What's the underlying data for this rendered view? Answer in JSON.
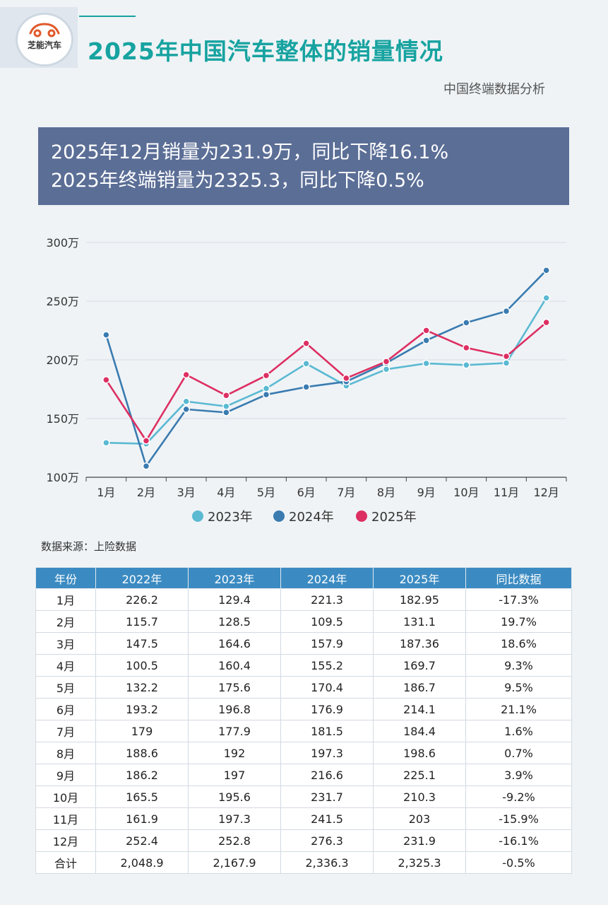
{
  "logo": {
    "text": "芝能汽车"
  },
  "title": "2025年中国汽车整体的销量情况",
  "subtitle": "中国终端数据分析",
  "banner": {
    "line1": "2025年12月销量为231.9万，同比下降16.1%",
    "line2": "2025年终端销量为2325.3，同比下降0.5%"
  },
  "source": "数据来源：上险数据",
  "watermark": "芝能汽车",
  "colors": {
    "2023": "#5bb9d2",
    "2024": "#3a7bb0",
    "2025": "#dd2f62",
    "title": "#17a3a0",
    "banner": "#5b6e96",
    "table_header": "#3b8bc2"
  },
  "chart_data": {
    "type": "line",
    "categories": [
      "1月",
      "2月",
      "3月",
      "4月",
      "5月",
      "6月",
      "7月",
      "8月",
      "9月",
      "10月",
      "11月",
      "12月"
    ],
    "yticks": [
      100,
      150,
      200,
      250,
      300
    ],
    "ytick_labels": [
      "100万",
      "150万",
      "200万",
      "250万",
      "300万"
    ],
    "ylim": [
      100,
      300
    ],
    "grid": true,
    "legend_position": "bottom",
    "series": [
      {
        "name": "2023年",
        "key": "2023",
        "values": [
          129.4,
          128.5,
          164.6,
          160.4,
          175.6,
          196.8,
          177.9,
          192,
          197,
          195.6,
          197.3,
          252.8
        ]
      },
      {
        "name": "2024年",
        "key": "2024",
        "values": [
          221.3,
          109.5,
          157.9,
          155.2,
          170.4,
          176.9,
          181.5,
          197.3,
          216.6,
          231.7,
          241.5,
          276.3
        ]
      },
      {
        "name": "2025年",
        "key": "2025",
        "values": [
          182.95,
          131.1,
          187.36,
          169.7,
          186.7,
          214.1,
          184.4,
          198.6,
          225.1,
          210.3,
          203,
          231.9
        ]
      }
    ]
  },
  "table": {
    "headers": [
      "年份",
      "2022年",
      "2023年",
      "2024年",
      "2025年",
      "同比数据"
    ],
    "rows": [
      [
        "1月",
        "226.2",
        "129.4",
        "221.3",
        "182.95",
        "-17.3%"
      ],
      [
        "2月",
        "115.7",
        "128.5",
        "109.5",
        "131.1",
        "19.7%"
      ],
      [
        "3月",
        "147.5",
        "164.6",
        "157.9",
        "187.36",
        "18.6%"
      ],
      [
        "4月",
        "100.5",
        "160.4",
        "155.2",
        "169.7",
        "9.3%"
      ],
      [
        "5月",
        "132.2",
        "175.6",
        "170.4",
        "186.7",
        "9.5%"
      ],
      [
        "6月",
        "193.2",
        "196.8",
        "176.9",
        "214.1",
        "21.1%"
      ],
      [
        "7月",
        "179",
        "177.9",
        "181.5",
        "184.4",
        "1.6%"
      ],
      [
        "8月",
        "188.6",
        "192",
        "197.3",
        "198.6",
        "0.7%"
      ],
      [
        "9月",
        "186.2",
        "197",
        "216.6",
        "225.1",
        "3.9%"
      ],
      [
        "10月",
        "165.5",
        "195.6",
        "231.7",
        "210.3",
        "-9.2%"
      ],
      [
        "11月",
        "161.9",
        "197.3",
        "241.5",
        "203",
        "-15.9%"
      ],
      [
        "12月",
        "252.4",
        "252.8",
        "276.3",
        "231.9",
        "-16.1%"
      ]
    ],
    "total": [
      "合计",
      "2,048.9",
      "2,167.9",
      "2,336.3",
      "2,325.3",
      "-0.5%"
    ]
  }
}
